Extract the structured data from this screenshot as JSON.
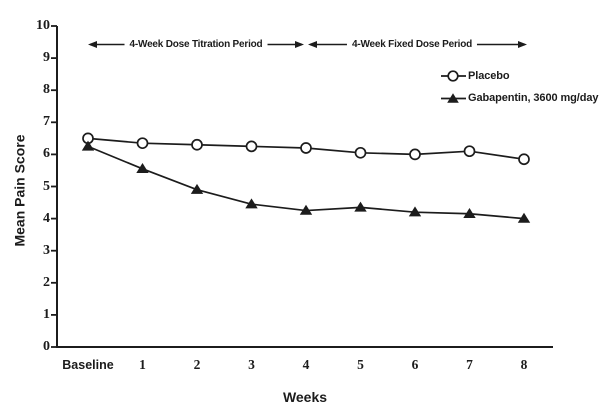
{
  "figure": {
    "background": "#ffffff",
    "ink_color": "#1c1c1c"
  },
  "chart_data": {
    "type": "line",
    "title": "",
    "xlabel": "Weeks",
    "ylabel": "Mean Pain Score",
    "x_categories": [
      "Baseline",
      "1",
      "2",
      "3",
      "4",
      "5",
      "6",
      "7",
      "8"
    ],
    "ylim": [
      0,
      10
    ],
    "yticks": [
      "0",
      "1",
      "2",
      "3",
      "4",
      "5",
      "6",
      "7",
      "8",
      "9",
      "10"
    ],
    "grid": false,
    "legend_position": "upper-right",
    "series": [
      {
        "name": "Placebo",
        "marker": "open-circle",
        "color": "#1c1c1c",
        "values": [
          6.5,
          6.35,
          6.3,
          6.25,
          6.2,
          6.05,
          6.0,
          6.1,
          5.85
        ]
      },
      {
        "name": "Gabapentin, 3600 mg/day",
        "marker": "filled-triangle",
        "color": "#1c1c1c",
        "values": [
          6.25,
          5.55,
          4.9,
          4.45,
          4.25,
          4.35,
          4.2,
          4.15,
          4.0
        ]
      }
    ],
    "annotations": [
      {
        "text": "4-Week Dose Titration Period",
        "x_start": "Baseline",
        "x_end": "4",
        "style": "double-arrow"
      },
      {
        "text": "4-Week Fixed Dose Period",
        "x_start": "4",
        "x_end": "8",
        "style": "double-arrow"
      }
    ]
  }
}
